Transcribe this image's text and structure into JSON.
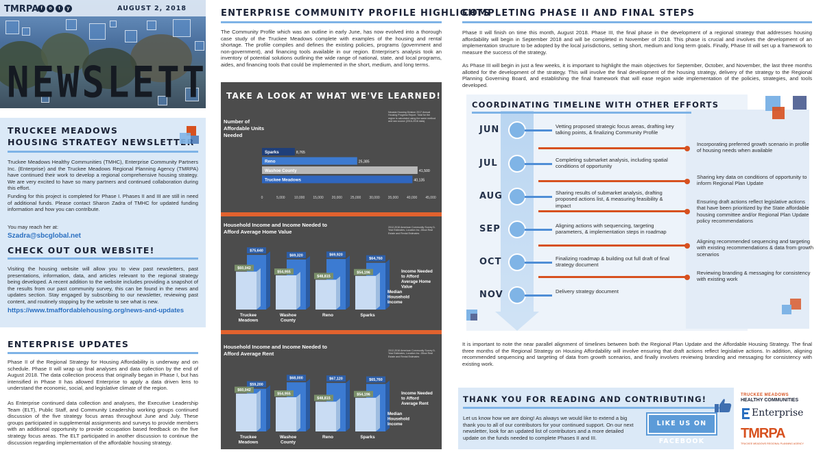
{
  "masthead": {
    "brand": "TMRPA",
    "social": [
      "f",
      "o",
      "t",
      "y"
    ],
    "social_icons": [
      "facebook-icon",
      "instagram-icon",
      "twitter-icon",
      "youtube-icon"
    ],
    "date": "AUGUST 2, 2018",
    "title": "NEWSLETTER"
  },
  "intro": {
    "title_line1": "TRUCKEE MEADOWS",
    "title_line2": "HOUSING STRATEGY NEWSLETTER",
    "p1": "Truckee Meadows Healthy Communities (TMHC), Enterprise Community Partners Inc. (Enterprise) and the Truckee Meadows Regional Planning Agency (TMRPA) have continued their work to develop a regional comprehensive housing strategy. We are very excited to have so many partners and continued collaboration during this effort.",
    "p2": "Funding for this project is completed for Phase I. Phases II and III are still in need of additional funds. Please contact Sharon Zadra of TMHC for updated funding information and how you can contribute.",
    "reach": "You may reach her at:",
    "email": "Szadra@sbcglobal.net"
  },
  "website": {
    "title": "CHECK OUT OUR WEBSITE!",
    "text": "Visiting the housing website will allow you to view past newsletters, past presentations, information, data, and articles relevant to the regional strategy being developed. A recent addition to the website includes providing a snapshot of the results from our past community survey, this can be found in the news and updates section. Stay engaged by subscribing to our newsletter, reviewing past content, and routinely stopping by the website to see what is new.",
    "url": "https://www.tmaffordablehousing.org/news-and-updates"
  },
  "enterprise": {
    "title": "ENTERPRISE UPDATES",
    "p1": "Phase II of the Regional Strategy for Housing Affordability is underway and on schedule. Phase II will wrap up final analyses and data collection by the end of August 2018. The data collection process that originally began in Phase I, but has intensified in Phase II has allowed Enterprise to apply a data driven lens to understand the economic, social, and legislative climate of the region.",
    "p2": "As Enterprise continued data collection and analyses, the Executive Leadership Team (ELT), Public Staff, and Community Leadership working groups continued discussion of the five strategy focus areas throughout June and July. These groups participated in supplemental assignments and surveys to provide members with an additional opportunity to provide occupation based feedback on the five strategy focus areas. The ELT participated in another discussion to continue the discussion regarding implementation of the affordable housing strategy."
  },
  "profile": {
    "title": "ENTERPRISE COMMUNITY PROFILE HIGHLIGHTS",
    "text": "The Community Profile which was an outline in early June, has now evolved into a thorough case study of the Truckee Meadows complete with examples of the housing and rental shortage. The profile compiles and defines the existing policies, programs (government and non-government), and financing tools available in our region. Enterprise's analysis took an inventory of potential solutions outlining the wide range of national, state, and local programs, aides, and financing tools that could be implemented in the short, medium, and long terms."
  },
  "infographic": {
    "title": "TAKE A LOOK AT WHAT WE'VE LEARNED!"
  },
  "chart_data": [
    {
      "type": "bar",
      "orientation": "horizontal",
      "title": "Number of Affordable Units Needed",
      "source_note": "Nevada Housing Division 2017 Annual Housing Progress Report. Total for the region is calculated using the same method and raw source (2016-2016 data).",
      "categories": [
        "Sparks",
        "Reno",
        "Washoe County",
        "Truckee Meadows"
      ],
      "values": [
        8765,
        25385,
        41500,
        40135
      ],
      "value_labels": [
        "8,765",
        "25,385",
        "41,500",
        "40,135"
      ],
      "xticks": [
        "0",
        "5,000",
        "10,000",
        "15,000",
        "20,000",
        "25,000",
        "30,000",
        "35,000",
        "40,000",
        "45,000"
      ],
      "xlim": [
        0,
        45000
      ]
    },
    {
      "type": "bar",
      "title": "Household Income and Income Needed to Afford Average Home Value",
      "source_note": "2012-2016 American Community Survey 5-Year Estimates, Location Inc. Zillow Real Estate and Rental Estimates",
      "categories": [
        "Truckee Meadows",
        "Washoe County",
        "Reno",
        "Sparks"
      ],
      "series": [
        {
          "name": "Median Household Income",
          "values": [
            60042,
            54955,
            48815,
            54196
          ],
          "labels": [
            "$60,042",
            "$54,955",
            "$48,815",
            "$54,196"
          ]
        },
        {
          "name": "Income Needed to Afford Average Home Value",
          "values": [
            75640,
            69320,
            69920,
            64760
          ],
          "labels": [
            "$75,640",
            "$69,320",
            "$69,920",
            "$64,760"
          ]
        }
      ],
      "ylim": [
        0,
        90000
      ]
    },
    {
      "type": "bar",
      "title": "Household Income and Income Needed to Afford Average Rent",
      "source_note": "2012-2016 American Community Survey 5-Year Estimates, Location Inc. Zillow Real Estate and Rental Estimates",
      "categories": [
        "Truckee Meadows",
        "Washoe County",
        "Reno",
        "Sparks"
      ],
      "series": [
        {
          "name": "Median Household Income",
          "values": [
            60042,
            54955,
            48815,
            54196
          ],
          "labels": [
            "$60,042",
            "$54,955",
            "$48,815",
            "$54,196"
          ]
        },
        {
          "name": "Income Needed to Afford Average Rent",
          "values": [
            59200,
            68000,
            67120,
            65760
          ],
          "labels": [
            "$59,200",
            "$68,000",
            "$67,120",
            "$65,760"
          ]
        }
      ],
      "ylim": [
        0,
        90000
      ]
    }
  ],
  "phase": {
    "title": "COMPLETING PHASE II AND FINAL STEPS",
    "p1": "Phase II will finish on time this month, August 2018. Phase III, the final phase in the development of a regional strategy that addresses housing affordability will begin in September 2018 and will be completed in November of 2018. This phase is crucial and involves the development of an implementation structure to be adopted by the local jurisdictions, setting short, medium and long term goals. Finally, Phase III will set up a framework to measure the success of the strategy.",
    "p2": "As Phase III will begin in just a few weeks, it is important to highlight the main objectives for September, October, and November, the last three months allotted for the development of the strategy. This will involve the final development of the housing strategy, delivery of the strategy to the Regional Planning Governing Board, and establishing the final framework that will ease region wide implementation of the policies, strategies, and tools developed."
  },
  "timeline": {
    "title": "COORDINATING TIMELINE WITH OTHER EFFORTS",
    "months": [
      "JUN",
      "JUL",
      "AUG",
      "SEP",
      "OCT",
      "NOV"
    ],
    "strategy_items": [
      "Vetting proposed strategic focus areas, drafting key talking points, & finalizing Community Profile",
      "Completing submarket analysis, including spatial conditions of opportunity",
      "Sharing results of submarket analysis, drafting proposed actions list, & measuring feasibility & impact",
      "Aligning actions with sequencing, targeting parameters, & implementation steps in roadmap",
      "Finalizing roadmap & building out full draft of final strategy document",
      "Delivery strategy document"
    ],
    "plan_items": [
      "Incorporating preferred growth scenario in profile of housing needs when available",
      "Sharing key data on conditions of opportunity to inform Regional Plan Update",
      "Ensuring draft actions reflect legislative actions that have been prioritized by the State affordable housing committee and/or Regional Plan Update policy recommendations",
      "Aligning recommended sequencing and targeting with existing recommendations & data from growth scenarios",
      "Reviewing branding & messaging for consistency with existing work"
    ],
    "summary": "It is important to note the near parallel alignment of timelines between both the Regional Plan Update and the Affordable Housing Strategy. The final three months of the Regional Strategy on Housing Affordability will involve ensuring that draft actions reflect legislative actions. In addition, aligning recommended sequencing and targeting of data from growth scenarios, and finally involves reviewing branding and messaging for consistency with existing work."
  },
  "thanks": {
    "title": "THANK YOU FOR READING AND CONTRIBUTING!",
    "text": "Let us know how we are doing! As always we would like to extend a big thank you to all of our contributors for your continued support. On our next newsletter, look for an updated list of contributors and a more detailed update on the funds needed to complete Phases II and III.",
    "fb_button": "LIKE US ON FACEBOOK"
  },
  "logos": {
    "tmhc_top": "TRUCKEE MEADOWS",
    "tmhc_bottom": "HEALTHY COMMUNITIES",
    "enterprise": "Enterprise",
    "tmrpa": "TMRPA",
    "tmrpa_sub": "TRUCKEE MEADOWS REGIONAL PLANNING AGENCY"
  },
  "colors": {
    "accent_blue": "#7eb3e6",
    "dark_blue": "#1a2236",
    "orange": "#e2622e",
    "panel": "#4c4c4c",
    "light_panel": "#dbe9f7"
  }
}
